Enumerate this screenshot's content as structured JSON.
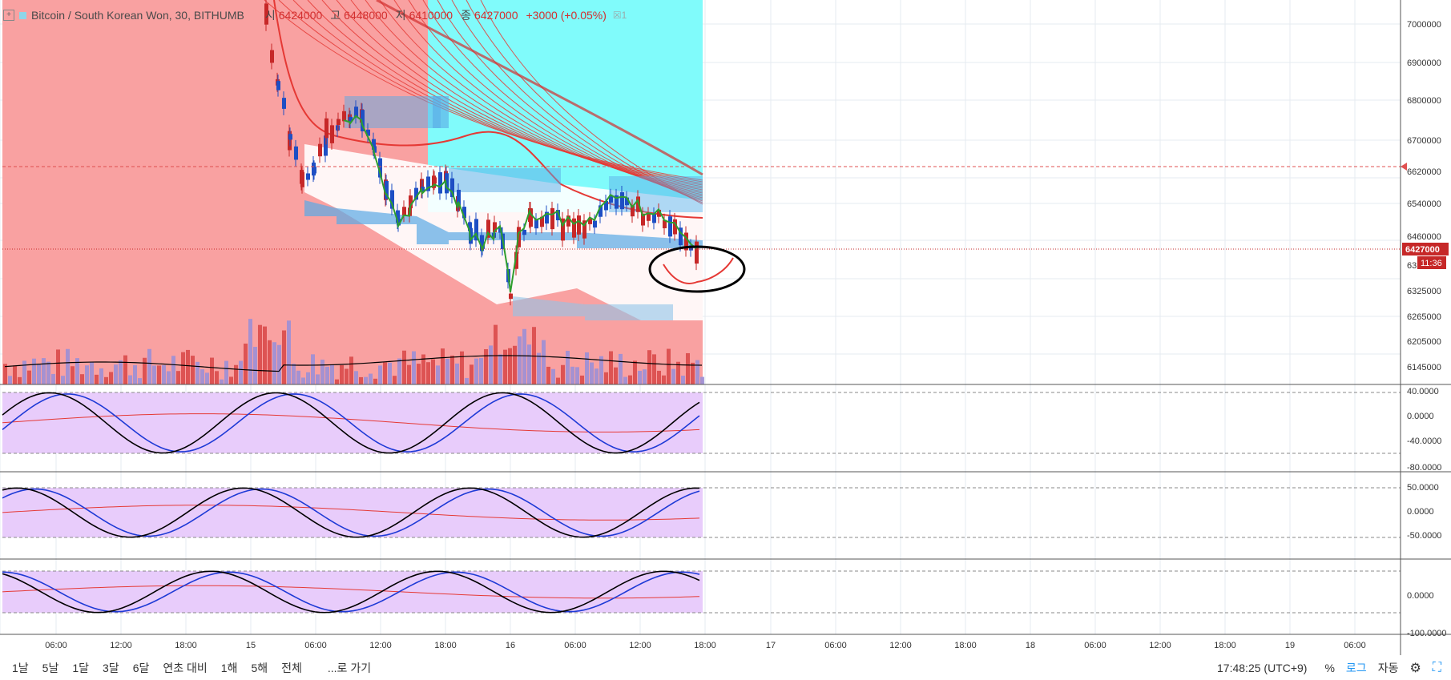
{
  "legend": {
    "expand_icon": "plus-box-icon",
    "symbol": "Bitcoin / South Korean Won, 30, BITHUMB",
    "open_label": "시",
    "open_value": "6424000",
    "high_label": "고",
    "high_value": "6448000",
    "low_label": "저",
    "low_value": "6410000",
    "close_label": "종",
    "close_value": "6427000",
    "change": "+3000 (+0.05%)",
    "indicator_count": "1"
  },
  "price_axis": {
    "ticks": [
      "7000000",
      "6900000",
      "6800000",
      "6700000",
      "6620000",
      "6540000",
      "6460000",
      "6427000",
      "6325000",
      "6265000",
      "6205000",
      "6145000"
    ],
    "last_price": "6427000",
    "countdown": "11:36",
    "partial_tick": "63"
  },
  "oscillators": [
    {
      "ticks": [
        "40.0000",
        "0.0000",
        "-40.0000",
        "-80.0000"
      ]
    },
    {
      "ticks": [
        "50.0000",
        "0.0000",
        "-50.0000"
      ]
    },
    {
      "ticks": [
        "0.0000",
        "-100.0000"
      ]
    }
  ],
  "time_axis": [
    "06:00",
    "12:00",
    "18:00",
    "15",
    "06:00",
    "12:00",
    "18:00",
    "16",
    "06:00",
    "12:00",
    "18:00",
    "17",
    "06:00",
    "12:00",
    "18:00",
    "18",
    "06:00",
    "12:00",
    "18:00",
    "19",
    "06:00"
  ],
  "bottom_bar": {
    "intervals": [
      "1날",
      "5날",
      "1달",
      "3달",
      "6달",
      "연초 대비",
      "1해",
      "5해",
      "전체"
    ],
    "goto": "...로 가기",
    "clock": "17:48:25 (UTC+9)",
    "percent": "%",
    "log": "로그",
    "auto": "자동",
    "settings_icon": "gear-icon",
    "fullscreen_icon": "fullscreen-icon"
  },
  "chart_data": {
    "type": "candlestick",
    "price_range": [
      6110000,
      7040000
    ],
    "time_range": [
      "14 00:00",
      "19 08:00"
    ],
    "last_price": 6427000,
    "alert_level": 6620000,
    "oscillator_ranges": [
      [
        -90,
        45
      ],
      [
        -80,
        70
      ],
      [
        -105,
        60
      ]
    ]
  },
  "colors": {
    "up": "#c62828",
    "down": "#1e4fc4",
    "bg_red": "#f9a1a1",
    "bg_cyan": "#80fbfb",
    "osc_bg": "#e8ccfb",
    "accent": "#2196f3"
  }
}
